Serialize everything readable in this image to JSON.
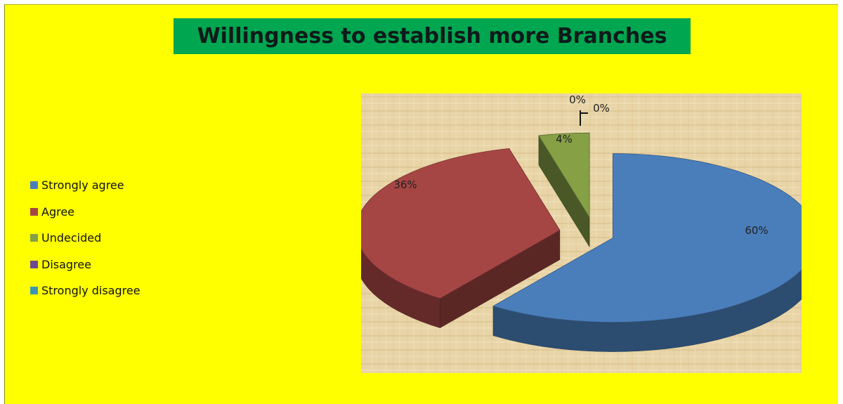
{
  "chart_data": {
    "type": "pie",
    "title": "Willingness to establish more Branches",
    "categories": [
      "Strongly agree",
      "Agree",
      "Undecided",
      "Disagree",
      "Strongly disagree"
    ],
    "values": [
      60,
      36,
      4,
      0,
      0
    ],
    "data_labels": [
      "60%",
      "36%",
      "4%",
      "0%",
      "0%"
    ],
    "colors": [
      "#4a7ebb",
      "#a64644",
      "#86a046",
      "#6e4a92",
      "#3d97b4"
    ],
    "style": "3d-exploded",
    "legend": "left"
  }
}
